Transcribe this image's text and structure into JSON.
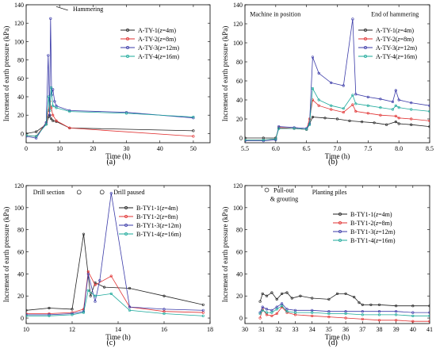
{
  "chart_data": [
    {
      "id": "a",
      "type": "line",
      "panel_label": "(a)",
      "xlabel": "Time (h)",
      "ylabel": "Increment of earth pressure (kPa)",
      "xlim": [
        0,
        55
      ],
      "ylim": [
        -10,
        140
      ],
      "xticks": [
        0,
        10,
        20,
        30,
        40,
        50
      ],
      "yticks": [
        0,
        20,
        40,
        60,
        80,
        100,
        120,
        140
      ],
      "annotations": [
        {
          "text": "Hammering",
          "x": 14,
          "y": 133
        }
      ],
      "series": [
        {
          "name": "A-TY-1(z=4m)",
          "label_main": "A-TY-1(",
          "label_var": "z",
          "label_rest": "=4m)",
          "color": "#222222",
          "x": [
            0,
            3,
            6,
            6.7,
            7.1,
            7.5,
            8,
            9,
            13,
            50
          ],
          "y": [
            0,
            2,
            10,
            18,
            20,
            16,
            14,
            13,
            6,
            3
          ]
        },
        {
          "name": "A-TY-2(z=8m)",
          "label_main": "A-TY-2(",
          "label_var": "z",
          "label_rest": "=8m)",
          "color": "#e03030",
          "x": [
            0,
            3,
            6,
            6.7,
            7.1,
            7.5,
            8,
            9,
            13,
            50
          ],
          "y": [
            -2,
            -3,
            12,
            25,
            35,
            28,
            20,
            14,
            6,
            -3
          ]
        },
        {
          "name": "A-TY-3(z=12m)",
          "label_main": "A-TY-3(",
          "label_var": "z",
          "label_rest": "=12m)",
          "color": "#3a3aa8",
          "x": [
            0,
            3,
            6,
            6.6,
            7,
            7.3,
            7.6,
            8,
            8.5,
            9,
            13,
            30,
            50
          ],
          "y": [
            -3,
            -5,
            12,
            85,
            20,
            125,
            42,
            48,
            35,
            30,
            25,
            23,
            17
          ]
        },
        {
          "name": "A-TY-4(z=16m)",
          "label_main": "A-TY-4(",
          "label_var": "z",
          "label_rest": "=16m)",
          "color": "#1aa89a",
          "x": [
            0,
            3,
            6,
            6.7,
            7.1,
            7.5,
            8,
            9,
            13,
            30,
            50
          ],
          "y": [
            -2,
            -3,
            10,
            40,
            25,
            50,
            30,
            28,
            24,
            22,
            18
          ]
        }
      ]
    },
    {
      "id": "b",
      "type": "line",
      "panel_label": "(b)",
      "xlabel": "Time (h)",
      "ylabel": "Increment of earth pressure (kPa)",
      "xlim": [
        5.5,
        8.5
      ],
      "ylim": [
        -5,
        140
      ],
      "xticks": [
        5.5,
        6.0,
        6.5,
        7.0,
        7.5,
        8.0,
        8.5
      ],
      "yticks": [
        0,
        20,
        40,
        60,
        80,
        100,
        120,
        140
      ],
      "xtick_labels": [
        "5.5",
        "6.0",
        "6.5",
        "7.0",
        "7.5",
        "8.0",
        "8.5"
      ],
      "annotations": [
        {
          "text": "Machine in position",
          "x": 5.58,
          "y": 128
        },
        {
          "text": "End of hammering",
          "x": 7.55,
          "y": 128
        }
      ],
      "series": [
        {
          "name": "A-TY-1(z=4m)",
          "label_main": "A-TY-1(",
          "label_var": "z",
          "label_rest": "=4m)",
          "color": "#222222",
          "x": [
            5.5,
            5.8,
            6.0,
            6.05,
            6.3,
            6.5,
            6.55,
            6.6,
            6.8,
            7.0,
            7.2,
            7.4,
            7.6,
            7.8,
            7.95,
            8.0,
            8.2,
            8.5
          ],
          "y": [
            0,
            0,
            0,
            10,
            10,
            9,
            15,
            22,
            21,
            20,
            18,
            17,
            16,
            14,
            17,
            15,
            14,
            12
          ]
        },
        {
          "name": "A-TY-2(z=8m)",
          "label_main": "A-TY-2(",
          "label_var": "z",
          "label_rest": "=8m)",
          "color": "#e03030",
          "x": [
            5.5,
            5.8,
            6.0,
            6.05,
            6.3,
            6.5,
            6.55,
            6.6,
            6.7,
            6.9,
            7.1,
            7.25,
            7.3,
            7.5,
            7.7,
            7.95,
            8.0,
            8.2,
            8.5
          ],
          "y": [
            -2,
            -2,
            -1,
            11,
            10,
            9,
            20,
            40,
            34,
            30,
            27,
            35,
            28,
            26,
            24,
            23,
            21,
            20,
            18
          ]
        },
        {
          "name": "A-TY-3(z=12m)",
          "label_main": "A-TY-3(",
          "label_var": "z",
          "label_rest": "=12m)",
          "color": "#3a3aa8",
          "x": [
            5.5,
            5.8,
            6.0,
            6.05,
            6.3,
            6.5,
            6.55,
            6.6,
            6.7,
            6.9,
            7.1,
            7.25,
            7.3,
            7.5,
            7.7,
            7.9,
            7.95,
            8.0,
            8.2,
            8.5
          ],
          "y": [
            -3,
            -3,
            -2,
            12,
            11,
            10,
            15,
            85,
            68,
            58,
            55,
            125,
            46,
            43,
            41,
            38,
            50,
            40,
            37,
            34
          ]
        },
        {
          "name": "A-TY-4(z=16m)",
          "label_main": "A-TY-4(",
          "label_var": "z",
          "label_rest": "=16m)",
          "color": "#1aa89a",
          "x": [
            5.5,
            5.8,
            6.0,
            6.05,
            6.3,
            6.5,
            6.55,
            6.6,
            6.7,
            6.9,
            7.1,
            7.25,
            7.3,
            7.5,
            7.7,
            7.9,
            7.95,
            8.0,
            8.2,
            8.5
          ],
          "y": [
            -2,
            -2,
            -1,
            10,
            10,
            9,
            14,
            52,
            40,
            34,
            31,
            45,
            36,
            34,
            32,
            30,
            34,
            32,
            30,
            28
          ]
        }
      ]
    },
    {
      "id": "c",
      "type": "line",
      "panel_label": "(c)",
      "xlabel": "Time (h)",
      "ylabel": "Increment of earth pressure (kPa)",
      "xlim": [
        10,
        18
      ],
      "ylim": [
        -5,
        120
      ],
      "xticks": [
        10,
        12,
        14,
        16,
        18
      ],
      "yticks": [
        0,
        20,
        40,
        60,
        80,
        100,
        120
      ],
      "annotations": [
        {
          "text": "Drill section",
          "x": 10.3,
          "y": 112
        },
        {
          "text": "Drill paused",
          "x": 13.8,
          "y": 112
        }
      ],
      "series": [
        {
          "name": "B-TY1-1(z=4m)",
          "label_main": "B-TY1-1(",
          "label_var": "z",
          "label_rest": "=4m)",
          "color": "#222222",
          "x": [
            10,
            11,
            12,
            12.5,
            12.8,
            13,
            13.4,
            14.5,
            16,
            17.7
          ],
          "y": [
            7,
            9,
            8,
            76,
            20,
            32,
            28,
            27,
            20,
            12
          ]
        },
        {
          "name": "B-TY1-2(z=8m)",
          "label_main": "B-TY1-2(",
          "label_var": "z",
          "label_rest": "=8m)",
          "color": "#e03030",
          "x": [
            10,
            11,
            12,
            12.5,
            12.7,
            13,
            13.7,
            14.5,
            16,
            17.7
          ],
          "y": [
            4,
            4,
            5,
            8,
            42,
            30,
            38,
            10,
            6,
            5
          ]
        },
        {
          "name": "B-TY1-3(z=12m)",
          "label_main": "B-TY1-3(",
          "label_var": "z",
          "label_rest": "=12m)",
          "color": "#3a3aa8",
          "x": [
            10,
            11,
            12,
            12.5,
            12.7,
            13,
            13.2,
            13.7,
            14.5,
            16,
            17.7
          ],
          "y": [
            3,
            3,
            4,
            6,
            40,
            15,
            34,
            113,
            10,
            8,
            7
          ]
        },
        {
          "name": "B-TY1-4(z=16m)",
          "label_main": "B-TY1-4(",
          "label_var": "z",
          "label_rest": "=16m)",
          "color": "#1aa89a",
          "x": [
            10,
            11,
            12,
            12.5,
            12.7,
            13,
            13.7,
            14.5,
            16,
            17.7
          ],
          "y": [
            2,
            2,
            3,
            5,
            25,
            20,
            22,
            7,
            4,
            2
          ]
        }
      ]
    },
    {
      "id": "d",
      "type": "line",
      "panel_label": "(d)",
      "xlabel": "Time (h)",
      "ylabel": "Increment of earth pressure (kPa)",
      "xlim": [
        30,
        41
      ],
      "ylim": [
        -5,
        120
      ],
      "xticks": [
        30,
        31,
        32,
        33,
        34,
        35,
        36,
        37,
        38,
        39,
        40,
        41
      ],
      "yticks": [
        0,
        20,
        40,
        60,
        80,
        100,
        120
      ],
      "annotations": [
        {
          "text": "Pull-out",
          "x": 31.7,
          "y": 114
        },
        {
          "text": "& grouting",
          "x": 31.5,
          "y": 106
        },
        {
          "text": "Planting piles",
          "x": 34.0,
          "y": 112
        }
      ],
      "series": [
        {
          "name": "B-TY1-1(z=4m)",
          "label_main": "B-TY1-1(",
          "label_var": "z",
          "label_rest": "=4m)",
          "color": "#222222",
          "x": [
            30.9,
            31.05,
            31.3,
            31.6,
            31.9,
            32.2,
            32.5,
            32.8,
            33.3,
            34,
            35,
            35.5,
            36,
            36.5,
            36.8,
            37,
            37.5,
            38,
            39,
            40,
            41
          ],
          "y": [
            15,
            22,
            20,
            23,
            17,
            22,
            23,
            18,
            20,
            18,
            17,
            22,
            22,
            19,
            14,
            12,
            12,
            12,
            11,
            11,
            11
          ]
        },
        {
          "name": "B-TY1-2(z=8m)",
          "label_main": "B-TY1-2(",
          "label_var": "z",
          "label_rest": "=8m)",
          "color": "#e03030",
          "x": [
            30.9,
            31.05,
            31.3,
            31.6,
            31.9,
            32.2,
            32.5,
            33,
            34,
            35,
            36,
            37,
            38,
            39,
            40,
            41
          ],
          "y": [
            0,
            8,
            3,
            2,
            4,
            10,
            5,
            3,
            2,
            1,
            0,
            -1,
            -2,
            -2,
            -3,
            -3
          ]
        },
        {
          "name": "B-TY1-3(z=12m)",
          "label_main": "B-TY1-3(",
          "label_var": "z",
          "label_rest": "=12m)",
          "color": "#3a3aa8",
          "x": [
            30.9,
            31.05,
            31.3,
            31.6,
            31.9,
            32.2,
            32.5,
            33,
            34,
            35,
            36,
            37,
            38,
            39,
            40,
            41
          ],
          "y": [
            5,
            10,
            8,
            7,
            10,
            13,
            8,
            7,
            7,
            6,
            6,
            6,
            6,
            6,
            5,
            5
          ]
        },
        {
          "name": "B-TY1-4(z=16m)",
          "label_main": "B-TY1-4(",
          "label_var": "z",
          "label_rest": "=16m)",
          "color": "#1aa89a",
          "x": [
            30.9,
            31.05,
            31.3,
            31.6,
            31.9,
            32.2,
            32.5,
            33,
            34,
            35,
            36,
            37,
            38,
            39,
            40,
            41
          ],
          "y": [
            4,
            7,
            5,
            5,
            8,
            11,
            6,
            5,
            5,
            4,
            4,
            3,
            3,
            3,
            2,
            2
          ]
        }
      ]
    }
  ]
}
